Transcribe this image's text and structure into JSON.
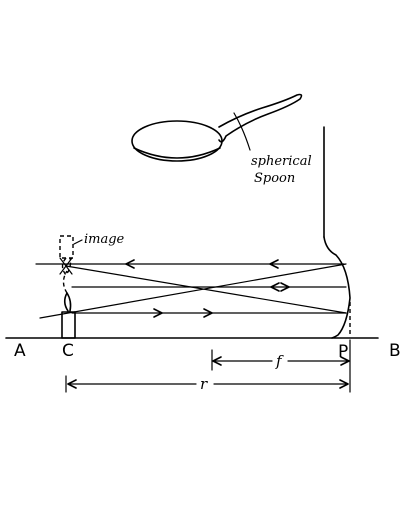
{
  "labels": {
    "spoon_line1": "spherical",
    "spoon_line2": "Spoon",
    "image": "image",
    "point_a": "A",
    "point_c": "C",
    "point_p": "P",
    "point_b": "B",
    "focal_length": "f",
    "radius": "r"
  }
}
